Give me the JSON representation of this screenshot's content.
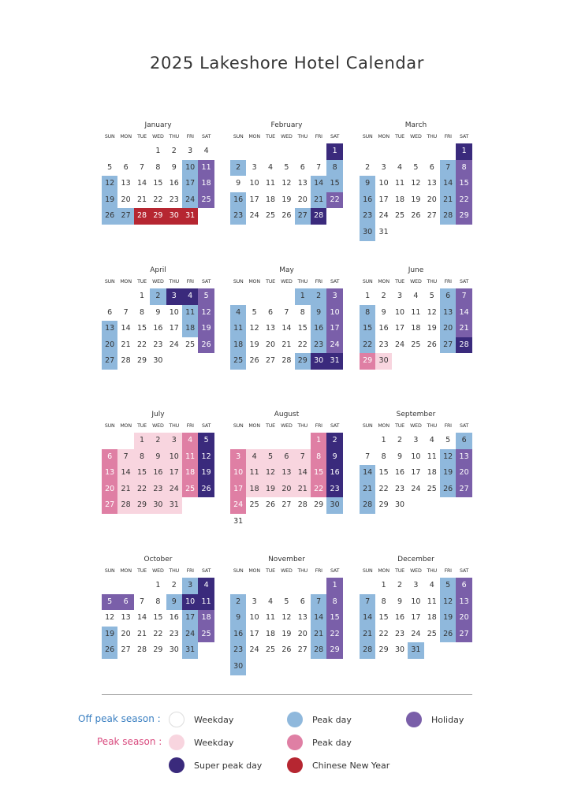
{
  "title": "2025 Lakeshore Hotel Calendar",
  "weekdays": [
    "SUN",
    "MON",
    "TUE",
    "WED",
    "THU",
    "FRI",
    "SAT"
  ],
  "colors": {
    "op": "#8fb8dc",
    "hol": "#7a5fa9",
    "sp": "#3a2a7c",
    "cny": "#b62631",
    "pw": "#f8d5df",
    "pp": "#df7fa4"
  },
  "months": [
    {
      "name": "January",
      "start": 3,
      "days": 31,
      "marks": {
        "op": [
          10,
          12,
          17,
          19,
          24,
          26,
          27
        ],
        "hol": [
          11,
          18,
          25
        ],
        "cny": [
          28,
          29,
          30,
          31
        ]
      }
    },
    {
      "name": "February",
      "start": 6,
      "days": 28,
      "marks": {
        "sp": [
          1,
          28
        ],
        "op": [
          2,
          8,
          14,
          15,
          16,
          21,
          23,
          27
        ],
        "hol": [
          22
        ]
      }
    },
    {
      "name": "March",
      "start": 6,
      "days": 31,
      "marks": {
        "sp": [
          1
        ],
        "op": [
          7,
          9,
          14,
          16,
          21,
          23,
          28,
          30
        ],
        "hol": [
          8,
          15,
          22,
          29
        ]
      }
    },
    {
      "name": "April",
      "start": 2,
      "days": 30,
      "marks": {
        "op": [
          2,
          11,
          13,
          18,
          20,
          27
        ],
        "sp": [
          3,
          4
        ],
        "hol": [
          5,
          12,
          19,
          26
        ]
      }
    },
    {
      "name": "May",
      "start": 4,
      "days": 31,
      "marks": {
        "op": [
          1,
          2,
          4,
          9,
          11,
          16,
          18,
          23,
          25,
          29
        ],
        "hol": [
          3,
          10,
          17,
          24
        ],
        "sp": [
          30,
          31
        ]
      }
    },
    {
      "name": "June",
      "start": 0,
      "days": 30,
      "marks": {
        "op": [
          6,
          8,
          13,
          15,
          20,
          22,
          27
        ],
        "hol": [
          7,
          14,
          21
        ],
        "sp": [
          28
        ],
        "pp": [
          29
        ],
        "pw": [
          30
        ]
      }
    },
    {
      "name": "July",
      "start": 2,
      "days": 31,
      "marks": {
        "pw": [
          1,
          2,
          3,
          7,
          8,
          9,
          10,
          14,
          15,
          16,
          17,
          21,
          22,
          23,
          24,
          28,
          29,
          30,
          31
        ],
        "pp": [
          4,
          6,
          11,
          13,
          18,
          20,
          25,
          27
        ],
        "sp": [
          5,
          12,
          19,
          26
        ]
      }
    },
    {
      "name": "August",
      "start": 5,
      "days": 31,
      "marks": {
        "pp": [
          1,
          3,
          8,
          10,
          15,
          17,
          22,
          24
        ],
        "sp": [
          2,
          9,
          16,
          23
        ],
        "pw": [
          4,
          5,
          6,
          7,
          11,
          12,
          13,
          14,
          18,
          19,
          20,
          21
        ],
        "op": [
          30
        ]
      }
    },
    {
      "name": "September",
      "start": 1,
      "days": 30,
      "marks": {
        "op": [
          6,
          12,
          14,
          19,
          21,
          26,
          28
        ],
        "hol": [
          13,
          20,
          27
        ]
      }
    },
    {
      "name": "October",
      "start": 3,
      "days": 31,
      "marks": {
        "op": [
          3,
          9,
          17,
          19,
          24,
          26,
          31
        ],
        "sp": [
          4,
          10,
          11
        ],
        "hol": [
          5,
          6,
          18,
          25
        ]
      }
    },
    {
      "name": "November",
      "start": 6,
      "days": 30,
      "marks": {
        "hol": [
          1,
          8,
          15,
          22,
          29
        ],
        "op": [
          2,
          7,
          9,
          14,
          16,
          21,
          23,
          28,
          30
        ]
      }
    },
    {
      "name": "December",
      "start": 1,
      "days": 31,
      "marks": {
        "op": [
          5,
          7,
          12,
          14,
          19,
          21,
          26,
          28,
          31
        ],
        "hol": [
          6,
          13,
          20,
          27
        ]
      }
    }
  ],
  "legend": {
    "off_peak_label": "Off peak season :",
    "peak_label": "Peak season :",
    "off_peak_color": "#3a7fc1",
    "peak_color": "#d94a7e",
    "items": {
      "op_weekday": "Weekday",
      "op_peak_day": "Peak day",
      "holiday": "Holiday",
      "p_weekday": "Weekday",
      "p_peak_day": "Peak day",
      "super_peak": "Super peak day",
      "cny": "Chinese New Year"
    }
  }
}
